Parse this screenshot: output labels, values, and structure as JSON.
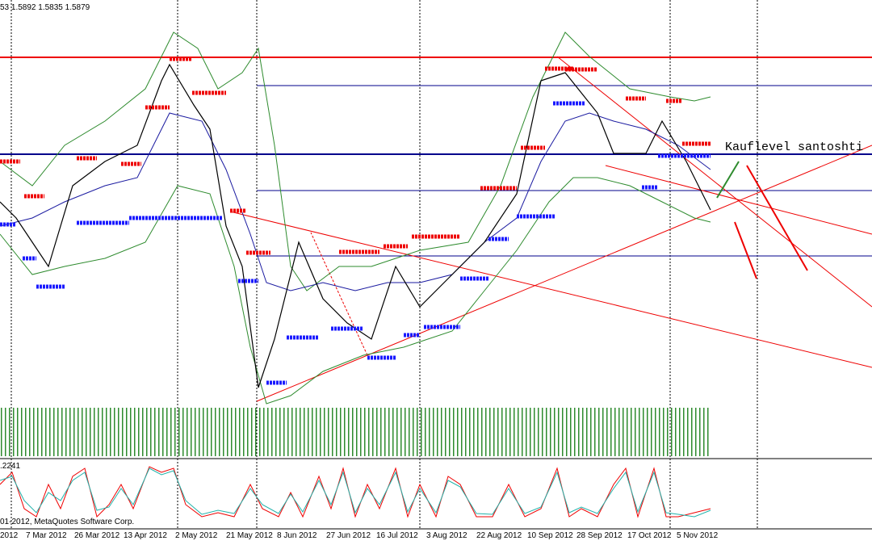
{
  "header": {
    "quote": "53 1.5892 1.5835 1.5879"
  },
  "annotation": "Kauflevel santoshti",
  "indicator": {
    "label": ".2241",
    "copyright": "01-2012, MetaQuotes Software Corp."
  },
  "time_axis": {
    "labels": [
      "2012",
      "7 Mar 2012",
      "26 Mar 2012",
      "13 Apr 2012",
      "2 May 2012",
      "21 May 2012",
      "8 Jun 2012",
      "27 Jun 2012",
      "16 Jul 2012",
      "3 Aug 2012",
      "22 Aug 2012",
      "10 Sep 2012",
      "28 Sep 2012",
      "17 Oct 2012",
      "5 Nov 2012"
    ]
  }
}
